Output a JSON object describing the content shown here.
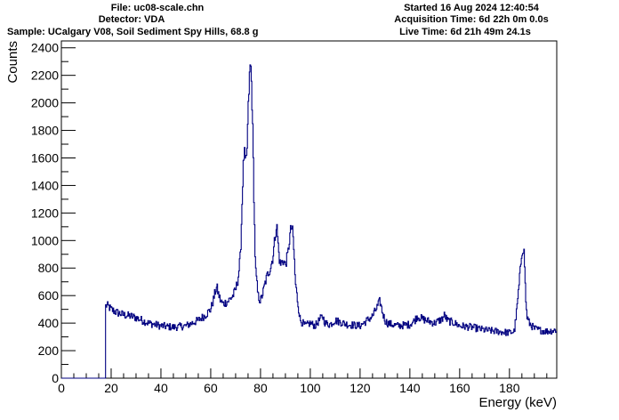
{
  "header": {
    "file": "File: uc08-scale.chn",
    "detector": "Detector: VDA",
    "sample": "Sample: UCalgary V08, Soil Sediment Spy Hills, 68.8 g",
    "started": "Started 16 Aug 2024 12:40:54",
    "acquisition": "Acquisition Time: 6d 22h 0m 0.0s",
    "live": "Live Time: 6d 21h 49m 24.1s"
  },
  "chart_data": {
    "type": "line",
    "title": "",
    "xlabel": "Energy (keV)",
    "ylabel": "Counts",
    "xlim": [
      0,
      199
    ],
    "ylim": [
      0,
      2450
    ],
    "x_ticks": [
      0,
      20,
      40,
      60,
      80,
      100,
      120,
      140,
      160,
      180
    ],
    "y_ticks": [
      0,
      200,
      400,
      600,
      800,
      1000,
      1200,
      1400,
      1600,
      1800,
      2000,
      2200,
      2400
    ],
    "grid": false,
    "line_color": "#000080",
    "series": [
      {
        "x": [
          0,
          17.7,
          17.8,
          18,
          19,
          20,
          22,
          25,
          28,
          30,
          35,
          40,
          45,
          50,
          55,
          58,
          60,
          61,
          62,
          62.5,
          63,
          64,
          65,
          67,
          69,
          70,
          71,
          72,
          73,
          73.5,
          74,
          74.5,
          75,
          75.5,
          76,
          76.5,
          77,
          77.5,
          78,
          79,
          80,
          81,
          82,
          83,
          84,
          85,
          86,
          86.5,
          87,
          87.5,
          88,
          89,
          90,
          91,
          92,
          92.5,
          93,
          93.5,
          94,
          95,
          96,
          98,
          100,
          102,
          104,
          105,
          106,
          108,
          110,
          115,
          120,
          125,
          127,
          128,
          129,
          130,
          131,
          133,
          135,
          140,
          142,
          143,
          145,
          150,
          153,
          154,
          155,
          158,
          160,
          165,
          170,
          175,
          180,
          182,
          183,
          184,
          185,
          185.5,
          186,
          186.5,
          187,
          188,
          189,
          190,
          192,
          195,
          199
        ],
        "y": [
          0,
          0,
          520,
          530,
          520,
          500,
          480,
          460,
          450,
          440,
          400,
          380,
          370,
          380,
          420,
          460,
          500,
          560,
          640,
          660,
          620,
          560,
          540,
          560,
          600,
          640,
          720,
          900,
          1500,
          1650,
          1550,
          1600,
          1900,
          2150,
          2300,
          2100,
          1700,
          1200,
          800,
          600,
          560,
          620,
          700,
          760,
          800,
          880,
          1050,
          1120,
          1000,
          880,
          820,
          860,
          820,
          900,
          1060,
          1100,
          1050,
          900,
          700,
          550,
          420,
          380,
          400,
          380,
          430,
          450,
          400,
          390,
          420,
          390,
          380,
          450,
          520,
          560,
          480,
          420,
          400,
          390,
          380,
          390,
          420,
          450,
          430,
          400,
          430,
          460,
          420,
          400,
          380,
          370,
          350,
          340,
          330,
          340,
          500,
          700,
          920,
          950,
          900,
          600,
          450,
          400,
          380,
          360,
          350,
          340,
          350
        ]
      }
    ]
  }
}
